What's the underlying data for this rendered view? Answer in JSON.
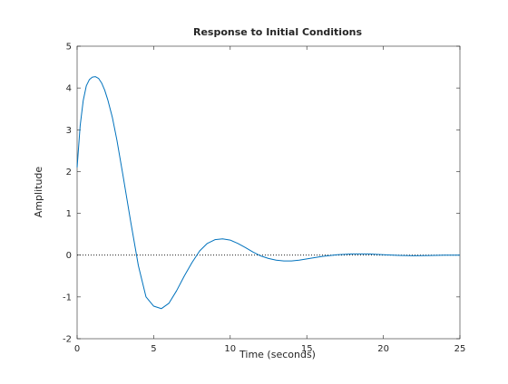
{
  "chart_data": {
    "type": "line",
    "title": "Response to Initial Conditions",
    "xlabel": "Time (seconds)",
    "ylabel": "Amplitude",
    "xlim": [
      0,
      25
    ],
    "ylim": [
      -2,
      5
    ],
    "xticks": [
      0,
      5,
      10,
      15,
      20,
      25
    ],
    "yticks": [
      -2,
      -1,
      0,
      1,
      2,
      3,
      4,
      5
    ],
    "grid": false,
    "reference_line": {
      "y": 0,
      "style": "dotted",
      "color": "#000000"
    },
    "series": [
      {
        "color": "#0072BD",
        "x": [
          0,
          0.2,
          0.4,
          0.6,
          0.8,
          1.0,
          1.2,
          1.4,
          1.6,
          1.8,
          2.0,
          2.3,
          2.6,
          3.0,
          3.5,
          4.0,
          4.5,
          5.0,
          5.5,
          6.0,
          6.5,
          7.0,
          7.5,
          8.0,
          8.5,
          9.0,
          9.5,
          10.0,
          10.5,
          11.0,
          11.5,
          12.0,
          12.5,
          13.0,
          13.5,
          14.0,
          14.5,
          15.0,
          16.0,
          17.0,
          18.0,
          19.0,
          20.0,
          21.0,
          22.0,
          23.0,
          24.0,
          25.0
        ],
        "y": [
          2.1,
          3.1,
          3.7,
          4.05,
          4.2,
          4.26,
          4.27,
          4.23,
          4.12,
          3.95,
          3.72,
          3.3,
          2.75,
          1.9,
          0.8,
          -0.25,
          -1.0,
          -1.22,
          -1.28,
          -1.15,
          -0.85,
          -0.5,
          -0.18,
          0.1,
          0.28,
          0.37,
          0.39,
          0.36,
          0.28,
          0.18,
          0.07,
          -0.02,
          -0.08,
          -0.12,
          -0.14,
          -0.14,
          -0.12,
          -0.09,
          -0.03,
          0.01,
          0.03,
          0.03,
          0.01,
          -0.005,
          -0.015,
          -0.01,
          -0.002,
          0.0
        ]
      }
    ]
  }
}
